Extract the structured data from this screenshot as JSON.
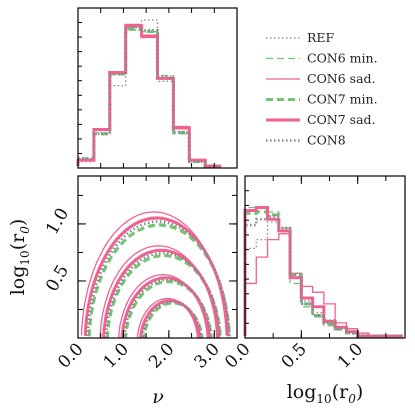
{
  "chart_data": [
    {
      "type": "histogram",
      "panel": "marginal-nu",
      "x_bin_edges": [
        0.0,
        0.35,
        0.7,
        1.05,
        1.4,
        1.75,
        2.1,
        2.45,
        2.8,
        3.15
      ],
      "series": [
        {
          "name": "REF",
          "values": [
            0.03,
            0.23,
            0.55,
            0.93,
            1.0,
            0.58,
            0.27,
            0.04,
            0.0
          ]
        },
        {
          "name": "CON6 min.",
          "values": [
            0.04,
            0.22,
            0.64,
            0.93,
            0.92,
            0.62,
            0.22,
            0.03,
            0.0
          ]
        },
        {
          "name": "CON6 sad.",
          "values": [
            0.04,
            0.25,
            0.63,
            0.97,
            0.88,
            0.6,
            0.27,
            0.04,
            0.0
          ]
        },
        {
          "name": "CON7 min.",
          "values": [
            0.05,
            0.22,
            0.63,
            0.94,
            0.92,
            0.6,
            0.23,
            0.03,
            0.0
          ]
        },
        {
          "name": "CON7 sad.",
          "values": [
            0.04,
            0.25,
            0.64,
            0.96,
            0.89,
            0.6,
            0.26,
            0.04,
            0.0
          ]
        },
        {
          "name": "CON8",
          "values": [
            0.05,
            0.22,
            0.63,
            0.95,
            0.93,
            0.61,
            0.23,
            0.03,
            0.0
          ]
        }
      ],
      "xlim": [
        0,
        3.5
      ]
    },
    {
      "type": "contour",
      "panel": "joint-nu-log10r0",
      "xlabel": "ν",
      "ylabel": "log10(r0)",
      "x_ticks": [
        "0.0",
        "1.0",
        "2.0",
        "3.0"
      ],
      "y_ticks": [
        "0.5",
        "1.0"
      ],
      "xlim": [
        0,
        3.5
      ],
      "ylim": [
        0,
        1.42
      ]
    },
    {
      "type": "histogram",
      "panel": "marginal-log10r0",
      "xlabel": "log10(r0)",
      "x_ticks": [
        "0.0",
        "0.5",
        "1.0"
      ],
      "x_bin_edges": [
        0.0,
        0.1,
        0.2,
        0.3,
        0.4,
        0.5,
        0.6,
        0.7,
        0.8,
        0.9,
        1.0,
        1.1,
        1.2,
        1.3,
        1.4
      ],
      "series": [
        {
          "name": "REF",
          "values": [
            0.6,
            0.66,
            0.78,
            0.74,
            0.43,
            0.24,
            0.16,
            0.11,
            0.06,
            0.03,
            0.01,
            0.0,
            0.0,
            0.0
          ]
        },
        {
          "name": "CON6 min.",
          "values": [
            0.88,
            0.88,
            0.85,
            0.74,
            0.36,
            0.2,
            0.13,
            0.07,
            0.04,
            0.02,
            0.0,
            0.0,
            0.0,
            0.0
          ]
        },
        {
          "name": "CON6 sad.",
          "values": [
            0.36,
            0.54,
            0.66,
            0.7,
            0.43,
            0.34,
            0.3,
            0.22,
            0.09,
            0.05,
            0.02,
            0.0,
            0.0,
            0.0
          ]
        },
        {
          "name": "CON7 min.",
          "values": [
            0.84,
            0.85,
            0.83,
            0.72,
            0.42,
            0.22,
            0.14,
            0.08,
            0.05,
            0.02,
            0.0,
            0.0,
            0.0,
            0.0
          ]
        },
        {
          "name": "CON7 sad.",
          "values": [
            0.86,
            0.88,
            0.8,
            0.72,
            0.4,
            0.26,
            0.2,
            0.1,
            0.06,
            0.03,
            0.0,
            0.0,
            0.0,
            0.0
          ]
        },
        {
          "name": "CON8",
          "values": [
            0.76,
            0.8,
            0.82,
            0.74,
            0.42,
            0.22,
            0.14,
            0.09,
            0.05,
            0.02,
            0.0,
            0.0,
            0.0,
            0.0
          ]
        }
      ],
      "xlim": [
        0,
        1.42
      ]
    }
  ],
  "labels": {
    "x_nu": "ν",
    "y_log_prefix": "log",
    "y_log_sub": "10",
    "y_log_arg": "(r",
    "y_log_arg_sub": "0",
    "y_log_close": ")"
  },
  "legend": [
    {
      "name": "REF",
      "color": "#888888",
      "style": "dotted",
      "width": 1.3
    },
    {
      "name": "CON6 min.",
      "color": "#74c476",
      "style": "dashed",
      "width": 1.3
    },
    {
      "name": "CON6 sad.",
      "color": "#f06292",
      "style": "solid",
      "width": 1.3
    },
    {
      "name": "CON7 min.",
      "color": "#74c476",
      "style": "dashed",
      "width": 3.0
    },
    {
      "name": "CON7 sad.",
      "color": "#f06292",
      "style": "solid",
      "width": 3.0
    },
    {
      "name": "CON8",
      "color": "#888888",
      "style": "dotted",
      "width": 2.6
    }
  ]
}
